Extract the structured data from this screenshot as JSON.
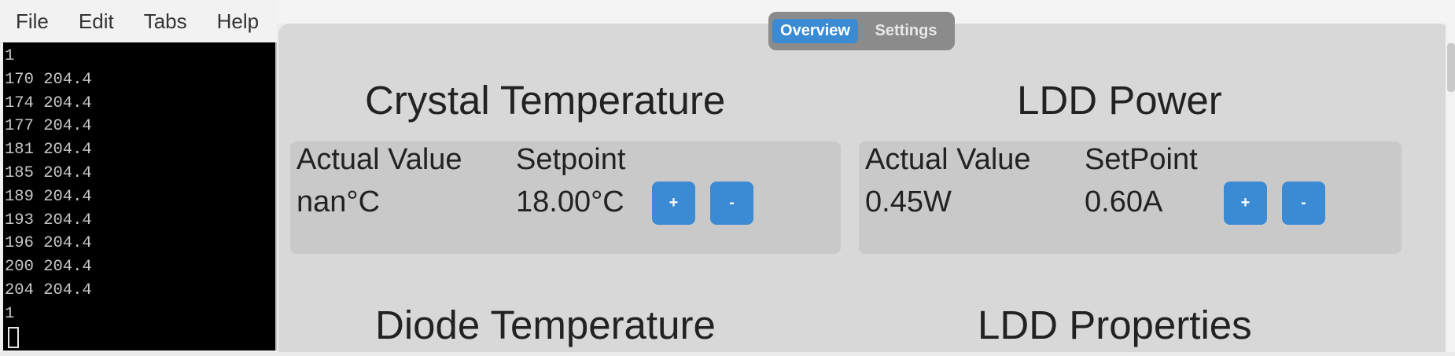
{
  "terminal": {
    "menu": [
      "File",
      "Edit",
      "Tabs",
      "Help"
    ],
    "lines": [
      "1",
      "170 204.4",
      "174 204.4",
      "177 204.4",
      "181 204.4",
      "185 204.4",
      "189 204.4",
      "193 204.4",
      "196 204.4",
      "200 204.4",
      "204 204.4",
      "1"
    ]
  },
  "app": {
    "tabs": {
      "overview": "Overview",
      "settings": "Settings",
      "active": "Overview"
    },
    "crystal": {
      "title": "Crystal Temperature",
      "actual_label": "Actual Value",
      "setpoint_label": "Setpoint",
      "actual_value": "nan°C",
      "setpoint_value": "18.00°C",
      "plus": "+",
      "minus": "-"
    },
    "ldd_power": {
      "title": "LDD Power",
      "actual_label": "Actual Value",
      "setpoint_label": "SetPoint",
      "actual_value": "0.45W",
      "setpoint_value": "0.60A",
      "plus": "+",
      "minus": "-"
    },
    "diode_title": "Diode Temperature",
    "ldd_properties_title": "LDD Properties"
  },
  "colors": {
    "accent": "#3a8ad4",
    "window_bg": "#d8d8d8",
    "card_bg": "#c9c9c9",
    "terminal_bg": "#000000"
  }
}
